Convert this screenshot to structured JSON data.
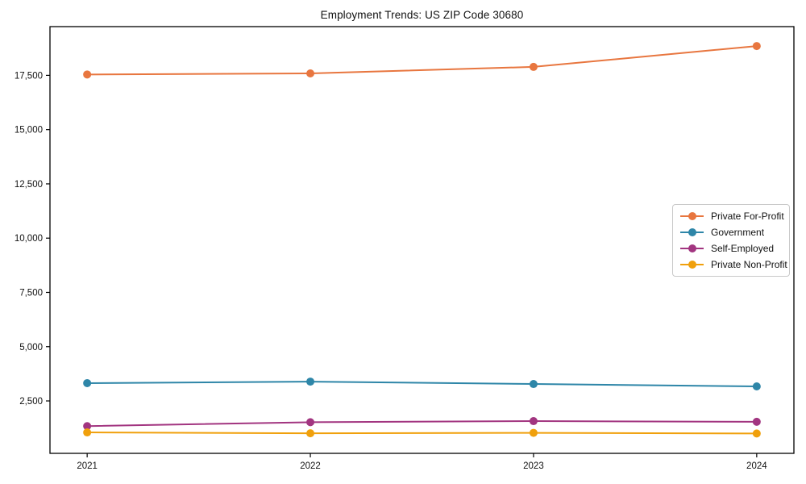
{
  "chart_data": {
    "type": "line",
    "title": "Employment Trends: US ZIP Code 30680",
    "x": [
      "2021",
      "2022",
      "2023",
      "2024"
    ],
    "series": [
      {
        "name": "Private For-Profit",
        "color": "#E8763F",
        "values": [
          17540,
          17590,
          17890,
          18850
        ]
      },
      {
        "name": "Government",
        "color": "#2E86A8",
        "values": [
          3320,
          3390,
          3280,
          3170
        ]
      },
      {
        "name": "Self-Employed",
        "color": "#A23580",
        "values": [
          1340,
          1520,
          1570,
          1540
        ]
      },
      {
        "name": "Private Non-Profit",
        "color": "#F0A00C",
        "values": [
          1050,
          1010,
          1030,
          1000
        ]
      }
    ],
    "xlabel": "",
    "ylabel": "",
    "ylim": [
      85,
      19745
    ],
    "yticks": [
      2500,
      5000,
      7500,
      10000,
      12500,
      15000,
      17500
    ],
    "ytick_labels": [
      "2,500",
      "5,000",
      "7,500",
      "10,000",
      "12,500",
      "15,000",
      "17,500"
    ],
    "xtick_labels": [
      "2021",
      "2022",
      "2023",
      "2024"
    ],
    "grid": false,
    "legend_position": "center-right",
    "marker": "circle",
    "line_width": 2,
    "marker_radius": 5,
    "axis_color": "#000000",
    "text_color": "#111111",
    "legend_border_color": "#c9c9c9",
    "background_color": "#ffffff"
  }
}
